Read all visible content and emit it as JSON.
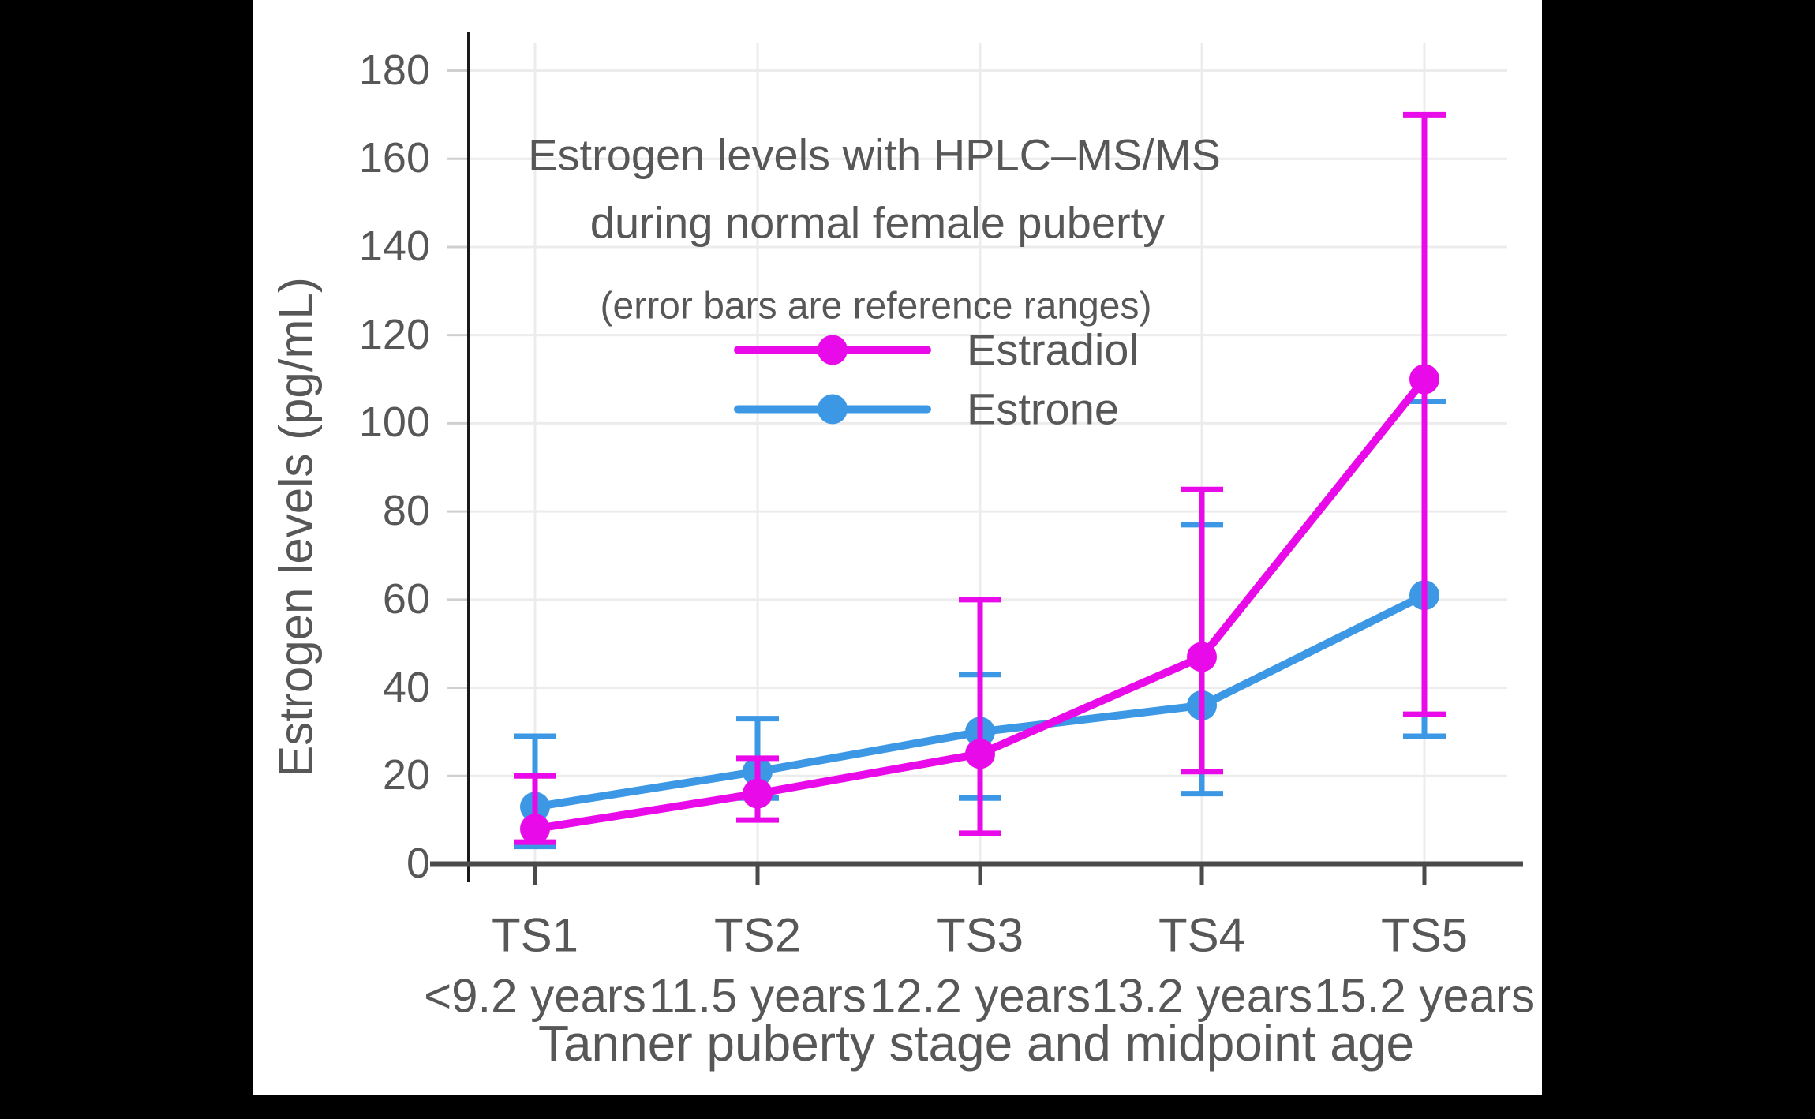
{
  "chart_data": {
    "type": "line",
    "title_lines": [
      "Estrogen levels with HPLC–MS/MS",
      "during normal female puberty"
    ],
    "subtitle": "(error bars are reference ranges)",
    "xlabel": "Tanner puberty stage and midpoint age",
    "ylabel": "Estrogen levels (pg/mL)",
    "categories": [
      "TS1",
      "TS2",
      "TS3",
      "TS4",
      "TS5"
    ],
    "category_ages": [
      "<9.2 years",
      "11.5 years",
      "12.2 years",
      "13.2 years",
      "15.2 years"
    ],
    "y_ticks": [
      0,
      20,
      40,
      60,
      80,
      100,
      120,
      140,
      160,
      180
    ],
    "ylim": [
      0,
      190
    ],
    "grid": true,
    "error_bars_meaning": "reference ranges",
    "legend": {
      "position": "upper-left-inside",
      "entries": [
        "Estradiol",
        "Estrone"
      ]
    },
    "series": [
      {
        "name": "Estradiol",
        "color": "#E90AE9",
        "values": [
          8,
          16,
          25,
          47,
          110
        ],
        "range_low": [
          5,
          10,
          7,
          21,
          34
        ],
        "range_high": [
          20,
          24,
          60,
          85,
          170
        ]
      },
      {
        "name": "Estrone",
        "color": "#3C97E5",
        "values": [
          13,
          21,
          30,
          36,
          61
        ],
        "range_low": [
          4,
          15,
          15,
          16,
          29
        ],
        "range_high": [
          29,
          33,
          43,
          77,
          105
        ]
      }
    ],
    "colors": {
      "grid": "#ECECEC",
      "axis": "#4A4A4A",
      "spine": "#1A1A1A",
      "text": "#575757"
    }
  }
}
